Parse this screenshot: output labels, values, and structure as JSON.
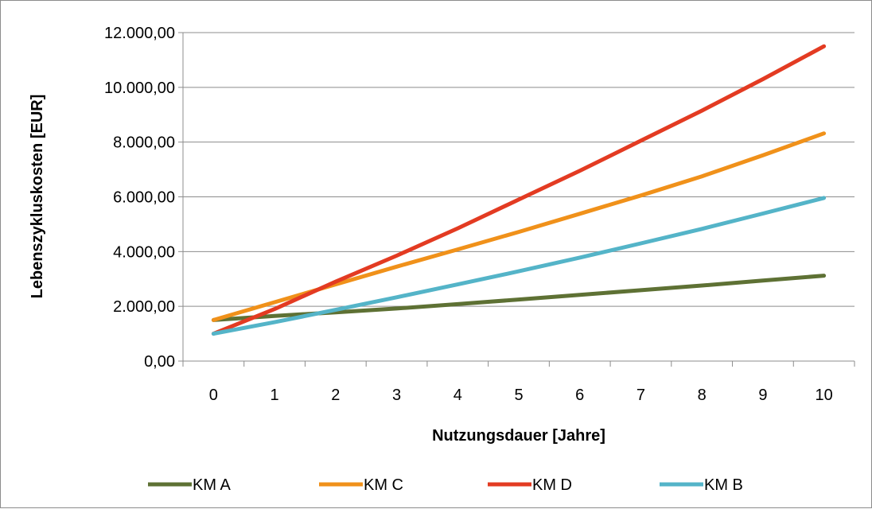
{
  "chart_data": {
    "type": "line",
    "xlabel": "Nutzungsdauer [Jahre]",
    "ylabel": "Lebenszykluskosten [EUR]",
    "x": [
      0,
      1,
      2,
      3,
      4,
      5,
      6,
      7,
      8,
      9,
      10
    ],
    "x_tick_labels": [
      "0",
      "1",
      "2",
      "3",
      "4",
      "5",
      "6",
      "7",
      "8",
      "9",
      "10"
    ],
    "ylim": [
      0,
      12000
    ],
    "y_ticks": [
      0,
      2000,
      4000,
      6000,
      8000,
      10000,
      12000
    ],
    "y_tick_labels": [
      "0,00",
      "2.000,00",
      "4.000,00",
      "6.000,00",
      "8.000,00",
      "10.000,00",
      "12.000,00"
    ],
    "grid": "horizontal",
    "legend_position": "bottom",
    "series": [
      {
        "name": "KM A",
        "color": "#5e7134",
        "values": [
          1500,
          1650,
          1780,
          1920,
          2080,
          2250,
          2420,
          2590,
          2760,
          2940,
          3120
        ]
      },
      {
        "name": "KM C",
        "color": "#f0911a",
        "values": [
          1500,
          2150,
          2800,
          3450,
          4080,
          4720,
          5380,
          6050,
          6750,
          7520,
          8320
        ]
      },
      {
        "name": "KM D",
        "color": "#e33b22",
        "values": [
          1000,
          1900,
          2900,
          3850,
          4850,
          5900,
          6950,
          8050,
          9150,
          10300,
          11500
        ]
      },
      {
        "name": "KM B",
        "color": "#54b4c8",
        "values": [
          1000,
          1420,
          1870,
          2330,
          2800,
          3280,
          3780,
          4300,
          4830,
          5390,
          5960
        ]
      }
    ]
  }
}
